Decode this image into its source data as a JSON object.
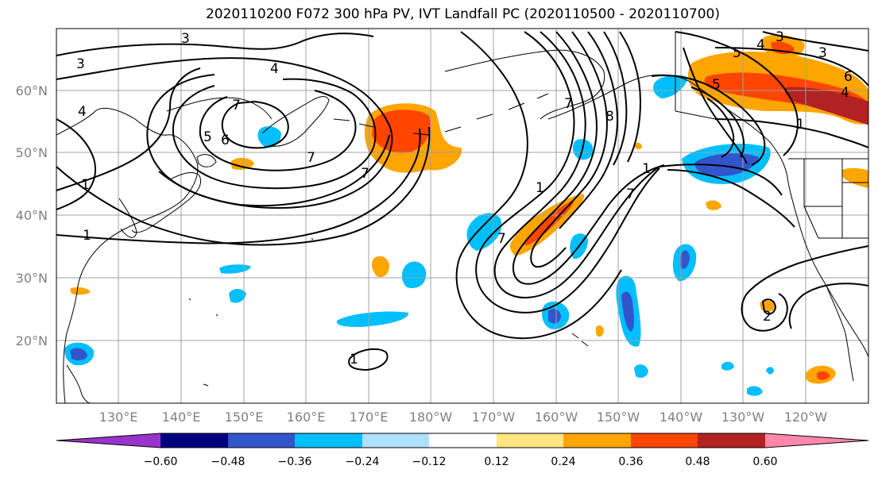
{
  "title": "2020110200 F072 300 hPa PV, IVT Landfall PC (2020110500 - 2020110700)",
  "lat_ticks": [
    "60°N",
    "50°N",
    "40°N",
    "30°N",
    "20°N"
  ],
  "lon_ticks": [
    "130°E",
    "140°E",
    "150°E",
    "160°E",
    "170°E",
    "180°W",
    "170°W",
    "160°W",
    "150°W",
    "140°W",
    "130°W",
    "120°W"
  ],
  "colorbar": {
    "ticks": [
      "−0.60",
      "−0.48",
      "−0.36",
      "−0.24",
      "−0.12",
      "0.12",
      "0.24",
      "0.36",
      "0.48",
      "0.60"
    ],
    "colors": [
      "#9933cc",
      "#000080",
      "#3355cc",
      "#00bfff",
      "#b0e0ff",
      "#ffffff",
      "#ffe680",
      "#ffa500",
      "#ff4500",
      "#b22222",
      "#ff88aa"
    ]
  },
  "contour_labels": [
    "3",
    "3",
    "4",
    "4",
    "7",
    "6",
    "5",
    "7",
    "1",
    "1",
    "1",
    "7",
    "7",
    "1",
    "8",
    "7",
    "7",
    "3",
    "5",
    "4",
    "3",
    "6",
    "4",
    "5",
    "1",
    "2",
    "1"
  ]
}
